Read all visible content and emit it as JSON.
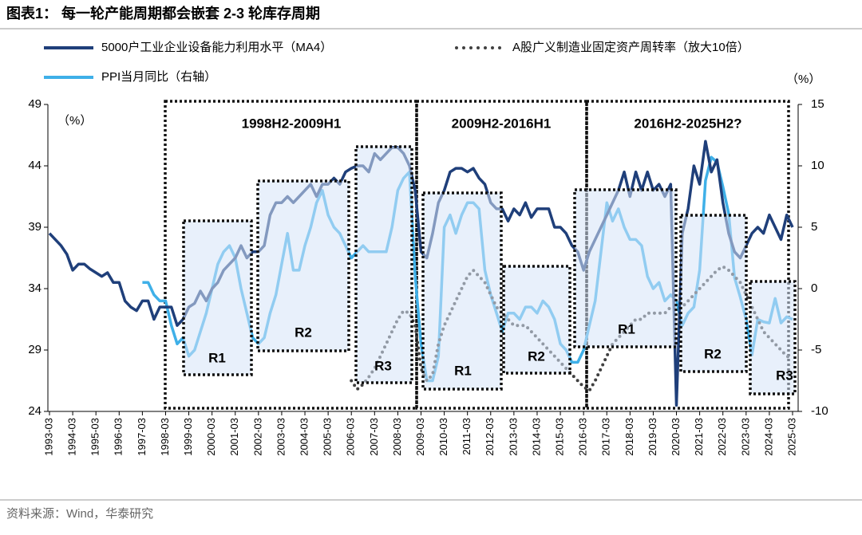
{
  "chart_data": {
    "type": "line",
    "title": "图表1：  每一轮产能周期都会嵌套 2-3 轮库存周期",
    "source": "资料来源：Wind，华泰研究",
    "y_unit": "（%）",
    "y2_unit": "（%）",
    "categories": [
      "1993-03",
      null,
      null,
      null,
      "1994-03",
      null,
      null,
      null,
      "1995-03",
      null,
      null,
      null,
      "1996-03",
      null,
      null,
      null,
      "1997-03",
      null,
      null,
      null,
      "1998-03",
      null,
      null,
      null,
      "1999-03",
      null,
      null,
      null,
      "2000-03",
      null,
      null,
      null,
      "2001-03",
      null,
      null,
      null,
      "2002-03",
      null,
      null,
      null,
      "2003-03",
      null,
      null,
      null,
      "2004-03",
      null,
      null,
      null,
      "2005-03",
      null,
      null,
      null,
      "2006-03",
      null,
      null,
      null,
      "2007-03",
      null,
      null,
      null,
      "2008-03",
      null,
      null,
      null,
      "2009-03",
      null,
      null,
      null,
      "2010-03",
      null,
      null,
      null,
      "2011-03",
      null,
      null,
      null,
      "2012-03",
      null,
      null,
      null,
      "2013-03",
      null,
      null,
      null,
      "2014-03",
      null,
      null,
      null,
      "2015-03",
      null,
      null,
      null,
      "2016-03",
      null,
      null,
      null,
      "2017-03",
      null,
      null,
      null,
      "2018-03",
      null,
      null,
      null,
      "2019-03",
      null,
      null,
      null,
      "2020-03",
      null,
      null,
      null,
      "2021-03",
      null,
      null,
      null,
      "2022-03",
      null,
      null,
      null,
      "2023-03",
      null,
      null,
      null,
      "2024-03",
      null,
      null,
      null,
      "2025-03"
    ],
    "ylim": [
      24,
      49
    ],
    "yticks": [
      24,
      29,
      34,
      39,
      44,
      49
    ],
    "y2lim": [
      -10,
      15
    ],
    "y2ticks": [
      -10,
      -5,
      0,
      5,
      10,
      15
    ],
    "annotations": [
      "1998H2-2009H1",
      "2009H2-2016H1",
      "2016H2-2025H2?",
      "R1",
      "R2",
      "R3",
      "R1",
      "R2",
      "R1",
      "R2",
      "R3"
    ],
    "series": [
      {
        "name": "5000户工业企业设备能力利用水平（MA4）",
        "color": "#1f3f7a",
        "style": "solid",
        "values": [
          38.5,
          38,
          37.5,
          36.8,
          35.5,
          36,
          36,
          35.6,
          35.3,
          35,
          35.3,
          34.5,
          34.5,
          33,
          32.5,
          32.2,
          33,
          33,
          31.5,
          32.5,
          32.5,
          32.5,
          31,
          31.5,
          32.5,
          32.8,
          33.8,
          33,
          34,
          34.5,
          35.5,
          36,
          36.5,
          37.5,
          36.5,
          37,
          37,
          37.5,
          40,
          41,
          41,
          41.5,
          41,
          41.5,
          42,
          42.5,
          41.5,
          42.5,
          42.5,
          43,
          42.5,
          43.5,
          43.8,
          44,
          44,
          43.5,
          45,
          44.5,
          45,
          45.5,
          45.5,
          45,
          44,
          42,
          37,
          36.5,
          38.5,
          41,
          42,
          43.5,
          43.8,
          43.8,
          43.5,
          43.8,
          43,
          42.5,
          41,
          40.5,
          40.5,
          39.5,
          40.5,
          40,
          41,
          39.8,
          40.5,
          40.5,
          40.5,
          39,
          39,
          38.5,
          37.5,
          37,
          35.5,
          37,
          38,
          39,
          40,
          41,
          42,
          43.5,
          41.5,
          43.5,
          42,
          43.5,
          42,
          42.5,
          41.5,
          42.5,
          24.5,
          38.5,
          40.5,
          44,
          42.5,
          46,
          43.5,
          44.5,
          41,
          38.5,
          37,
          36.5,
          37.5,
          38.5,
          39,
          38.5,
          40,
          39,
          38,
          40,
          39
        ]
      },
      {
        "name": "A股广义制造业固定资产周转率（放大10倍）",
        "color": "#404040",
        "style": "dotted",
        "values": [
          null,
          null,
          null,
          null,
          null,
          null,
          null,
          null,
          null,
          null,
          null,
          null,
          null,
          null,
          null,
          null,
          null,
          null,
          null,
          null,
          null,
          null,
          null,
          null,
          null,
          null,
          null,
          null,
          null,
          null,
          null,
          null,
          null,
          null,
          null,
          null,
          null,
          null,
          null,
          null,
          null,
          null,
          null,
          null,
          null,
          null,
          null,
          null,
          null,
          null,
          null,
          null,
          26.5,
          25.8,
          26.2,
          26.8,
          27.5,
          28.5,
          29.5,
          30.5,
          31.5,
          32.2,
          32,
          31,
          27.5,
          26.5,
          27,
          29.5,
          31,
          32,
          33,
          34,
          35,
          35.5,
          35,
          34.5,
          33.5,
          32.5,
          32,
          31.5,
          31,
          31,
          31,
          30.5,
          30,
          29.5,
          29,
          28.5,
          28,
          27.5,
          27,
          26.5,
          26,
          25.7,
          26.5,
          27.5,
          28.5,
          29.5,
          30,
          30.5,
          31,
          31.5,
          31.5,
          32,
          32,
          32,
          32,
          32.5,
          32.5,
          32.5,
          33,
          33.5,
          34,
          34.5,
          35,
          35.5,
          35.8,
          35.5,
          35,
          34.5,
          33.5,
          32.5,
          31.5,
          30.5,
          30,
          29.5,
          29,
          28.5,
          28.3
        ]
      },
      {
        "name": "PPI当月同比（右轴）",
        "color": "#3fb0e8",
        "style": "solid",
        "axis": "y2",
        "values": [
          null,
          null,
          null,
          null,
          null,
          null,
          null,
          null,
          null,
          null,
          null,
          null,
          null,
          null,
          null,
          null,
          0.5,
          0.5,
          -0.5,
          -1,
          -1,
          -3,
          -4.5,
          -4,
          -5.5,
          -5,
          -3.5,
          -2,
          0,
          2,
          3,
          3.5,
          2.5,
          0,
          -2,
          -4,
          -4.5,
          -4,
          -2,
          -0.5,
          2,
          4.5,
          1.5,
          1.5,
          3.5,
          5,
          7,
          8,
          6,
          5,
          4.5,
          3.5,
          2.5,
          3,
          3.5,
          3,
          3,
          3,
          3,
          5,
          8,
          9,
          9.5,
          1,
          -4.5,
          -7.5,
          -7.5,
          -5.5,
          5,
          6,
          4.5,
          6,
          7,
          7,
          6.5,
          1.5,
          -0.5,
          -2,
          -3.5,
          -2,
          -2,
          -2.5,
          -1.5,
          -1.5,
          -2,
          -1,
          -1.5,
          -2.5,
          -4.5,
          -5,
          -6,
          -6,
          -5,
          -3,
          -1,
          3,
          7,
          5.5,
          6.5,
          5,
          4,
          4,
          3.5,
          1,
          0,
          0.5,
          -1,
          -0.5,
          -1,
          -3,
          -2,
          -1.5,
          1.5,
          8.8,
          10.7,
          10.3,
          8.3,
          6.1,
          0.9,
          -0.7,
          -2.5,
          -5.4,
          -2.5,
          -2.7,
          -2.8,
          -0.8,
          -2.8,
          -2.3,
          -2.5
        ]
      }
    ]
  }
}
